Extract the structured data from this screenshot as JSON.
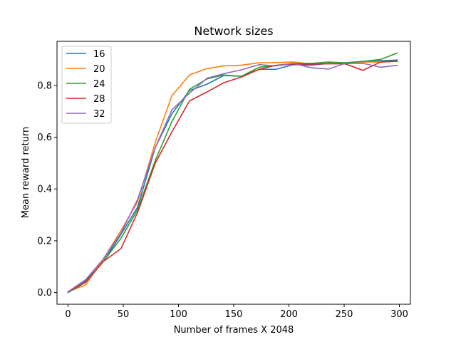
{
  "chart_data": {
    "type": "line",
    "title": "Network sizes",
    "xlabel": "Number of frames X 2048",
    "ylabel": "Mean reward return",
    "xlim": [
      -10,
      310
    ],
    "ylim": [
      -0.045,
      0.97
    ],
    "xticks": [
      0,
      50,
      100,
      150,
      200,
      250,
      300
    ],
    "xtick_labels": [
      "0",
      "50",
      "100",
      "150",
      "200",
      "250",
      "300"
    ],
    "yticks": [
      0.0,
      0.2,
      0.4,
      0.6,
      0.8
    ],
    "ytick_labels": [
      "0.0",
      "0.2",
      "0.4",
      "0.6",
      "0.8"
    ],
    "grid": false,
    "legend_position": "top-left",
    "x": [
      0,
      16,
      32,
      48,
      63,
      79,
      94,
      110,
      126,
      141,
      157,
      173,
      188,
      204,
      220,
      236,
      251,
      267,
      283,
      298
    ],
    "series": [
      {
        "name": "16",
        "color": "#1f77b4",
        "values": [
          0.003,
          0.045,
          0.12,
          0.225,
          0.33,
          0.56,
          0.69,
          0.78,
          0.805,
          0.838,
          0.835,
          0.862,
          0.862,
          0.88,
          0.878,
          0.885,
          0.883,
          0.89,
          0.895,
          0.898
        ]
      },
      {
        "name": "20",
        "color": "#ff7f0e",
        "values": [
          0.003,
          0.03,
          0.13,
          0.24,
          0.35,
          0.58,
          0.76,
          0.84,
          0.865,
          0.875,
          0.878,
          0.887,
          0.888,
          0.89,
          0.883,
          0.885,
          0.888,
          0.89,
          0.89,
          0.893
        ]
      },
      {
        "name": "24",
        "color": "#2ca02c",
        "values": [
          0.0,
          0.04,
          0.12,
          0.21,
          0.32,
          0.51,
          0.66,
          0.785,
          0.825,
          0.84,
          0.835,
          0.87,
          0.877,
          0.885,
          0.885,
          0.89,
          0.887,
          0.893,
          0.9,
          0.925
        ]
      },
      {
        "name": "28",
        "color": "#d62728",
        "values": [
          0.003,
          0.04,
          0.12,
          0.17,
          0.31,
          0.5,
          0.62,
          0.74,
          0.775,
          0.81,
          0.832,
          0.862,
          0.877,
          0.882,
          0.882,
          0.883,
          0.883,
          0.858,
          0.89,
          0.893
        ]
      },
      {
        "name": "32",
        "color": "#9467bd",
        "values": [
          0.003,
          0.05,
          0.13,
          0.23,
          0.36,
          0.56,
          0.705,
          0.77,
          0.828,
          0.845,
          0.86,
          0.88,
          0.875,
          0.885,
          0.868,
          0.863,
          0.885,
          0.885,
          0.87,
          0.877
        ]
      }
    ]
  }
}
